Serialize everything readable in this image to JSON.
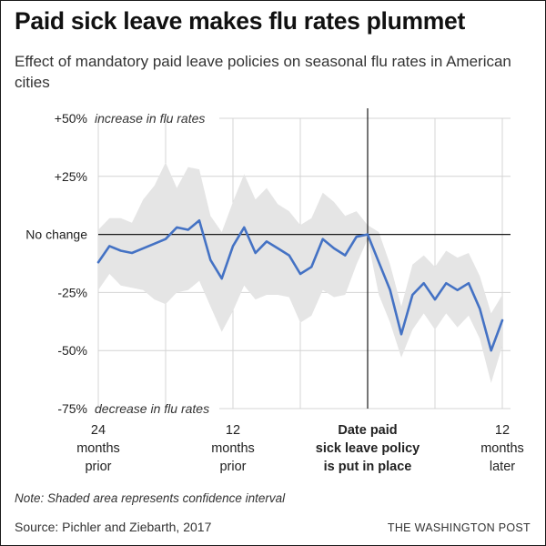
{
  "title": "Paid sick leave makes flu rates plummet",
  "subtitle": "Effect of mandatory paid leave policies on seasonal flu rates in American cities",
  "note": "Note: Shaded area represents confidence interval",
  "source": "Source: Pichler and Ziebarth, 2017",
  "credit": "THE WASHINGTON POST",
  "colors": {
    "line": "#4472c4",
    "band": "#e5e5e5",
    "grid": "#d4d4d4",
    "zero": "#1a1a1a"
  },
  "chart_data": {
    "type": "line",
    "ylim": [
      -75,
      50
    ],
    "xlim": [
      -24,
      12
    ],
    "y_ticks": [
      {
        "value": 50,
        "label": "+50%",
        "note": "increase in flu rates"
      },
      {
        "value": 25,
        "label": "+25%"
      },
      {
        "value": 0,
        "label": "No change"
      },
      {
        "value": -25,
        "label": "-25%"
      },
      {
        "value": -50,
        "label": "-50%"
      },
      {
        "value": -75,
        "label": "-75%",
        "note": "decrease in flu rates"
      }
    ],
    "x_ticks": [
      {
        "value": -24,
        "lines": [
          "24",
          "months",
          "prior"
        ],
        "bold": false
      },
      {
        "value": -12,
        "lines": [
          "12",
          "months",
          "prior"
        ],
        "bold": false
      },
      {
        "value": 0,
        "lines": [
          "Date paid",
          "sick leave policy",
          "is put in place"
        ],
        "bold": true
      },
      {
        "value": 12,
        "lines": [
          "12",
          "months",
          "later"
        ],
        "bold": false
      }
    ],
    "x_gridlines": [
      -24,
      -18,
      -12,
      -6,
      0,
      6,
      12
    ],
    "series": [
      {
        "x": [
          -24,
          -23,
          -22,
          -21,
          -20,
          -19,
          -18,
          -17,
          -16,
          -15,
          -14,
          -13,
          -12,
          -11,
          -10,
          -9,
          -8,
          -7,
          -6,
          -5,
          -4,
          -3,
          -2,
          -1,
          0,
          1,
          2,
          3,
          4,
          5,
          6,
          7,
          8,
          9,
          10,
          11,
          12
        ],
        "y": [
          -12,
          -5,
          -7,
          -8,
          -6,
          -4,
          -2,
          3,
          2,
          6,
          -11,
          -19,
          -5,
          3,
          -8,
          -3,
          -6,
          -9,
          -17,
          -14,
          -2,
          -6,
          -9,
          -1,
          0,
          -12,
          -24,
          -43,
          -26,
          -21,
          -28,
          -21,
          -24,
          -21,
          -32,
          -50,
          -37
        ],
        "lower": [
          -24,
          -17,
          -22,
          -23,
          -24,
          -28,
          -30,
          -25,
          -24,
          -20,
          -31,
          -42,
          -33,
          -22,
          -28,
          -26,
          -26,
          -27,
          -38,
          -35,
          -24,
          -27,
          -26,
          -13,
          -2,
          -26,
          -38,
          -53,
          -41,
          -34,
          -41,
          -34,
          -40,
          -35,
          -45,
          -64,
          -48
        ],
        "upper": [
          2,
          7,
          7,
          5,
          15,
          21,
          31,
          20,
          29,
          28,
          8,
          1,
          14,
          26,
          15,
          20,
          13,
          10,
          4,
          7,
          18,
          14,
          8,
          10,
          4,
          1,
          -13,
          -31,
          -13,
          -9,
          -14,
          -7,
          -10,
          -8,
          -18,
          -34,
          -26
        ]
      }
    ]
  }
}
